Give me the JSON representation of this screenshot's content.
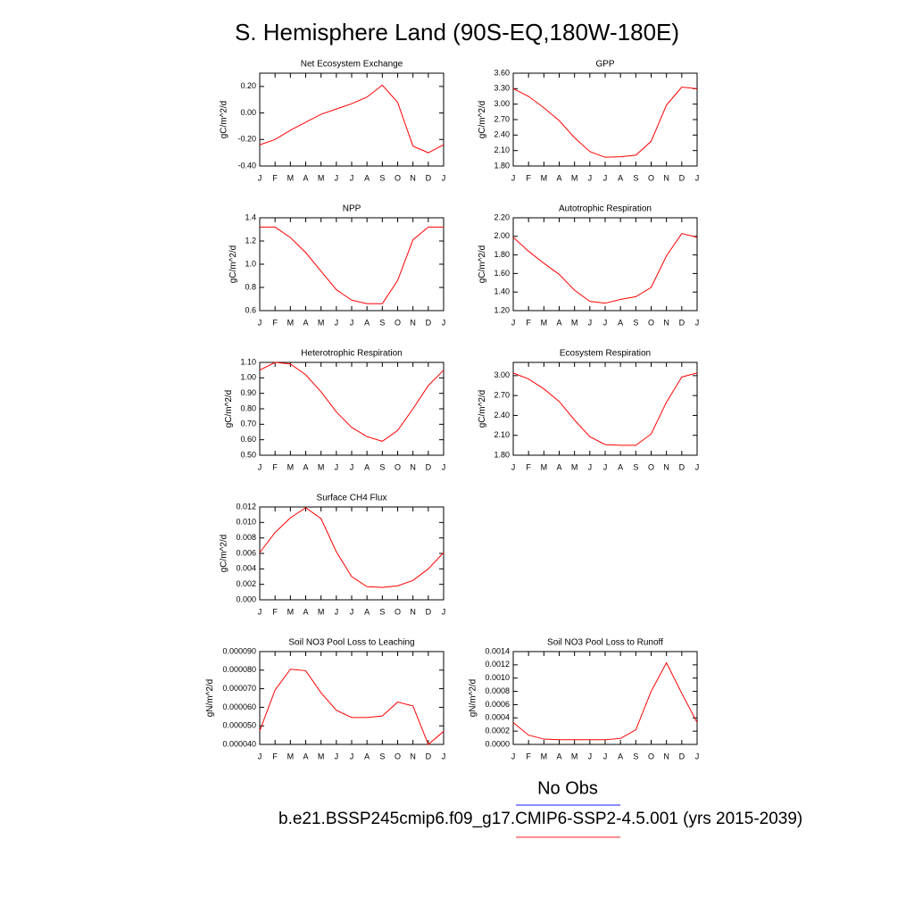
{
  "title": "S. Hemisphere Land (90S-EQ,180W-180E)",
  "chart_data": [
    {
      "type": "line",
      "title": "Net Ecosystem Exchange",
      "ylabel": "gC/m^2/d",
      "color": "#ff0000",
      "categories": [
        "J",
        "F",
        "M",
        "A",
        "M",
        "J",
        "J",
        "A",
        "S",
        "O",
        "N",
        "D",
        "J"
      ],
      "values": [
        -0.24,
        -0.2,
        -0.13,
        -0.07,
        -0.01,
        0.03,
        0.07,
        0.12,
        0.21,
        0.08,
        -0.25,
        -0.3,
        -0.24
      ],
      "ylim": [
        -0.4,
        0.3
      ],
      "yticks": [
        {
          "value": -0.4,
          "label": "-0.40"
        },
        {
          "value": -0.2,
          "label": "-0.20"
        },
        {
          "value": 0,
          "label": "0.00"
        },
        {
          "value": 0.2,
          "label": "0.20"
        }
      ]
    },
    {
      "type": "line",
      "title": "GPP",
      "ylabel": "gC/m^2/d",
      "color": "#ff0000",
      "categories": [
        "J",
        "F",
        "M",
        "A",
        "M",
        "J",
        "J",
        "A",
        "S",
        "O",
        "N",
        "D",
        "J"
      ],
      "values": [
        3.3,
        3.15,
        2.93,
        2.68,
        2.35,
        2.08,
        1.97,
        1.98,
        2.01,
        2.28,
        2.98,
        3.33,
        3.3
      ],
      "ylim": [
        1.8,
        3.6
      ],
      "yticks": [
        {
          "value": 1.8,
          "label": "1.80"
        },
        {
          "value": 2.1,
          "label": "2.10"
        },
        {
          "value": 2.4,
          "label": "2.40"
        },
        {
          "value": 2.7,
          "label": "2.70"
        },
        {
          "value": 3,
          "label": "3.00"
        },
        {
          "value": 3.3,
          "label": "3.30"
        },
        {
          "value": 3.6,
          "label": "3.60"
        }
      ]
    },
    {
      "type": "line",
      "title": "NPP",
      "ylabel": "gC/m^2/d",
      "color": "#ff0000",
      "categories": [
        "J",
        "F",
        "M",
        "A",
        "M",
        "J",
        "J",
        "A",
        "S",
        "O",
        "N",
        "D",
        "J"
      ],
      "values": [
        1.32,
        1.32,
        1.23,
        1.1,
        0.94,
        0.78,
        0.69,
        0.66,
        0.66,
        0.86,
        1.21,
        1.32,
        1.32
      ],
      "ylim": [
        0.6,
        1.4
      ],
      "yticks": [
        0.6,
        0.8,
        {
          "value": 1,
          "label": "1.0"
        },
        1.2,
        1.4
      ]
    },
    {
      "type": "line",
      "title": "Autotrophic Respiration",
      "ylabel": "gC/m^2/d",
      "color": "#ff0000",
      "categories": [
        "J",
        "F",
        "M",
        "A",
        "M",
        "J",
        "J",
        "A",
        "S",
        "O",
        "N",
        "D",
        "J"
      ],
      "values": [
        1.99,
        1.84,
        1.71,
        1.59,
        1.42,
        1.3,
        1.28,
        1.32,
        1.35,
        1.45,
        1.79,
        2.03,
        1.99
      ],
      "ylim": [
        1.2,
        2.2
      ],
      "yticks": [
        {
          "value": 1.2,
          "label": "1.20"
        },
        {
          "value": 1.4,
          "label": "1.40"
        },
        {
          "value": 1.6,
          "label": "1.60"
        },
        {
          "value": 1.8,
          "label": "1.80"
        },
        {
          "value": 2,
          "label": "2.00"
        },
        {
          "value": 2.2,
          "label": "2.20"
        }
      ]
    },
    {
      "type": "line",
      "title": "Heterotrophic Respiration",
      "ylabel": "gC/m^2/d",
      "color": "#ff0000",
      "categories": [
        "J",
        "F",
        "M",
        "A",
        "M",
        "J",
        "J",
        "A",
        "S",
        "O",
        "N",
        "D",
        "J"
      ],
      "values": [
        1.05,
        1.1,
        1.09,
        1.02,
        0.91,
        0.78,
        0.68,
        0.62,
        0.59,
        0.66,
        0.8,
        0.95,
        1.05
      ],
      "ylim": [
        0.5,
        1.1
      ],
      "yticks": [
        {
          "value": 0.5,
          "label": "0.50"
        },
        {
          "value": 0.6,
          "label": "0.60"
        },
        {
          "value": 0.7,
          "label": "0.70"
        },
        {
          "value": 0.8,
          "label": "0.80"
        },
        {
          "value": 0.9,
          "label": "0.90"
        },
        {
          "value": 1,
          "label": "1.00"
        },
        {
          "value": 1.1,
          "label": "1.10"
        }
      ]
    },
    {
      "type": "line",
      "title": "Ecosystem Respiration",
      "ylabel": "gC/m^2/d",
      "color": "#ff0000",
      "categories": [
        "J",
        "F",
        "M",
        "A",
        "M",
        "J",
        "J",
        "A",
        "S",
        "O",
        "N",
        "D",
        "J"
      ],
      "values": [
        3.04,
        2.95,
        2.8,
        2.61,
        2.33,
        2.08,
        1.96,
        1.95,
        1.95,
        2.12,
        2.6,
        2.98,
        3.04
      ],
      "ylim": [
        1.8,
        3.2
      ],
      "yticks": [
        {
          "value": 1.8,
          "label": "1.80"
        },
        {
          "value": 2.1,
          "label": "2.10"
        },
        {
          "value": 2.4,
          "label": "2.40"
        },
        {
          "value": 2.7,
          "label": "2.70"
        },
        {
          "value": 3,
          "label": "3.00"
        }
      ]
    },
    {
      "type": "line",
      "title": "Surface CH4 Flux",
      "ylabel": "gC/m^2/d",
      "color": "#ff0000",
      "categories": [
        "J",
        "F",
        "M",
        "A",
        "M",
        "J",
        "J",
        "A",
        "S",
        "O",
        "N",
        "D",
        "J"
      ],
      "values": [
        0.0061,
        0.0087,
        0.0106,
        0.0119,
        0.0105,
        0.0062,
        0.003,
        0.0017,
        0.0016,
        0.0018,
        0.0025,
        0.004,
        0.0061
      ],
      "ylim": [
        0,
        0.012
      ],
      "yticks": [
        {
          "value": 0,
          "label": "0.000"
        },
        0.002,
        0.004,
        0.006,
        0.008,
        {
          "value": 0.01,
          "label": "0.010"
        },
        0.012
      ]
    },
    {
      "type": "line",
      "title": "Soil NO3 Pool Loss to Leaching",
      "ylabel": "gN/m^2/d",
      "color": "#ff0000",
      "categories": [
        "J",
        "F",
        "M",
        "A",
        "M",
        "J",
        "J",
        "A",
        "S",
        "O",
        "N",
        "D",
        "J"
      ],
      "values": [
        4.73e-05,
        6.93e-05,
        8.05e-05,
        7.97e-05,
        6.78e-05,
        5.84e-05,
        5.45e-05,
        5.45e-05,
        5.53e-05,
        6.28e-05,
        6.07e-05,
        4e-05,
        4.7e-05
      ],
      "ylim": [
        4e-05,
        9e-05
      ],
      "yticks": [
        {
          "value": 4e-05,
          "label": "0.000040"
        },
        {
          "value": 5e-05,
          "label": "0.000050"
        },
        {
          "value": 6e-05,
          "label": "0.000060"
        },
        {
          "value": 7e-05,
          "label": "0.000070"
        },
        {
          "value": 8e-05,
          "label": "0.000080"
        },
        {
          "value": 9e-05,
          "label": "0.000090"
        }
      ]
    },
    {
      "type": "line",
      "title": "Soil NO3 Pool Loss to Runoff",
      "ylabel": "gN/m^2/d",
      "color": "#ff0000",
      "categories": [
        "J",
        "F",
        "M",
        "A",
        "M",
        "J",
        "J",
        "A",
        "S",
        "O",
        "N",
        "D",
        "J"
      ],
      "values": [
        0.00033,
        0.00014,
        8e-05,
        7e-05,
        7e-05,
        7e-05,
        7e-05,
        9e-05,
        0.00022,
        0.0008,
        0.00123,
        0.00077,
        0.00033
      ],
      "ylim": [
        0,
        0.0014
      ],
      "yticks": [
        {
          "value": 0,
          "label": "0.0000"
        },
        0.0002,
        0.0004,
        0.0006,
        0.0008,
        {
          "value": 0.001,
          "label": "0.0010"
        },
        0.0012,
        0.0014
      ]
    }
  ],
  "legend": [
    {
      "name": "No Obs",
      "color": "#6666ff"
    },
    {
      "name": "b.e21.BSSP245cmip6.f09_g17.CMIP6-SSP2-4.5.001 (yrs 2015-2039)",
      "color": "#ff6666"
    }
  ]
}
